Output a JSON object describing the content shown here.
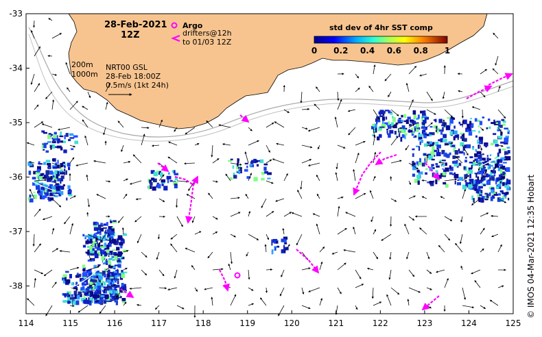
{
  "map": {
    "date": "28-Feb-2021",
    "hour": "12Z",
    "argo_label": "Argo",
    "drifters_line1": "drifters@12h",
    "drifters_line2": "to 01/03 12Z",
    "iso_200": "200m",
    "iso_1000": "1000m",
    "current_source": "NRT00 GSL",
    "current_time": "28-Feb 18:00Z",
    "scale_text": "0.5m/s (1kt 24h)",
    "colorbar_title": "std dev of 4hr SST comp",
    "colorbar_ticks": [
      "0",
      "0.2",
      "0.4",
      "0.6",
      "0.8",
      "1"
    ],
    "credit": "© IMOS 04-Mar-2021 12:35 Hobart",
    "lon_ticks": [
      "114",
      "115",
      "116",
      "117",
      "118",
      "119",
      "120",
      "121",
      "122",
      "123",
      "124",
      "125"
    ],
    "lat_ticks": [
      "-33",
      "-34",
      "-35",
      "-36",
      "-37",
      "-38"
    ],
    "colors": {
      "land": "#f7c48f",
      "drifter": "#ff00ff",
      "isobath": "#a8a8a8",
      "ice_blue": "#1a2a9a"
    }
  }
}
